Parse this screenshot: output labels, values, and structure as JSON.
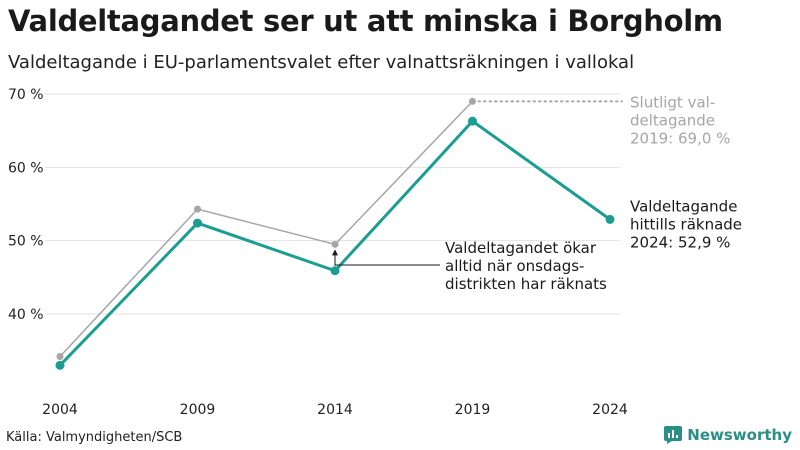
{
  "header": {
    "title": "Valdeltagandet ser ut att minska i Borgholm",
    "subtitle": "Valdeltagande i EU-parlamentsvalet efter valnattsräkningen i vallokal"
  },
  "footer": {
    "source": "Källa: Valmyndigheten/SCB",
    "brand": "Newsworthy"
  },
  "colors": {
    "teal": "#1a9e92",
    "gray": "#a6a6a6",
    "gridline": "#e2e2e2",
    "brand": "#2a8f86"
  },
  "chart_data": {
    "type": "line",
    "title": "Valdeltagandet ser ut att minska i Borgholm",
    "subtitle": "Valdeltagande i EU-parlamentsvalet efter valnattsräkningen i vallokal",
    "xlabel": "",
    "ylabel": "",
    "x": [
      "2004",
      "2009",
      "2014",
      "2019",
      "2024"
    ],
    "ylim": [
      31,
      70
    ],
    "yticks": [
      40,
      50,
      60,
      70
    ],
    "ytick_labels": [
      "40 %",
      "50 %",
      "60 %",
      "70 %"
    ],
    "grid": true,
    "series": [
      {
        "color": "#a6a6a6",
        "values": [
          34.2,
          54.3,
          49.5,
          69.0,
          null
        ]
      },
      {
        "color": "#1a9e92",
        "values": [
          33.0,
          52.4,
          45.9,
          66.3,
          52.9
        ]
      }
    ],
    "annotations": {
      "final": [
        "Slutligt val-",
        "deltagande",
        "2019: 69,0 %"
      ],
      "current": [
        "Valdeltagande",
        "hittills räknade",
        "2024: 52,9 %"
      ],
      "note": [
        "Valdeltagandet ökar",
        "alltid när onsdags-",
        "distrikten har räknats"
      ]
    }
  }
}
